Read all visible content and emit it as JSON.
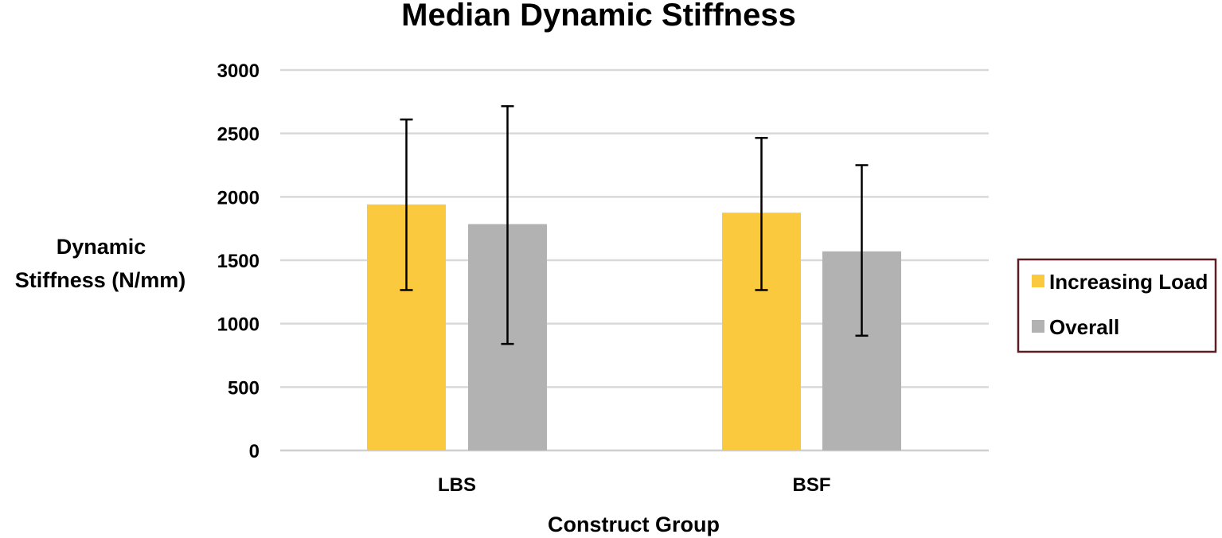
{
  "chart_data": {
    "type": "bar",
    "title": "Median Dynamic Stiffness",
    "xlabel": "Construct Group",
    "ylabel_lines": [
      "Dynamic",
      "Stiffness  (N/mm)"
    ],
    "categories": [
      "LBS",
      "BSF"
    ],
    "ylim": [
      0,
      3000
    ],
    "yticks": [
      0,
      500,
      1000,
      1500,
      2000,
      2500,
      3000
    ],
    "grid": true,
    "legend_position": "right",
    "series": [
      {
        "name": "Increasing Load",
        "color": "#FBC93D",
        "values": [
          1940,
          1875
        ],
        "error_low": [
          1265,
          1265
        ],
        "error_high": [
          2610,
          2465
        ]
      },
      {
        "name": "Overall",
        "color": "#B2B2B2",
        "values": [
          1785,
          1570
        ],
        "error_low": [
          840,
          905
        ],
        "error_high": [
          2715,
          2250
        ]
      }
    ]
  }
}
